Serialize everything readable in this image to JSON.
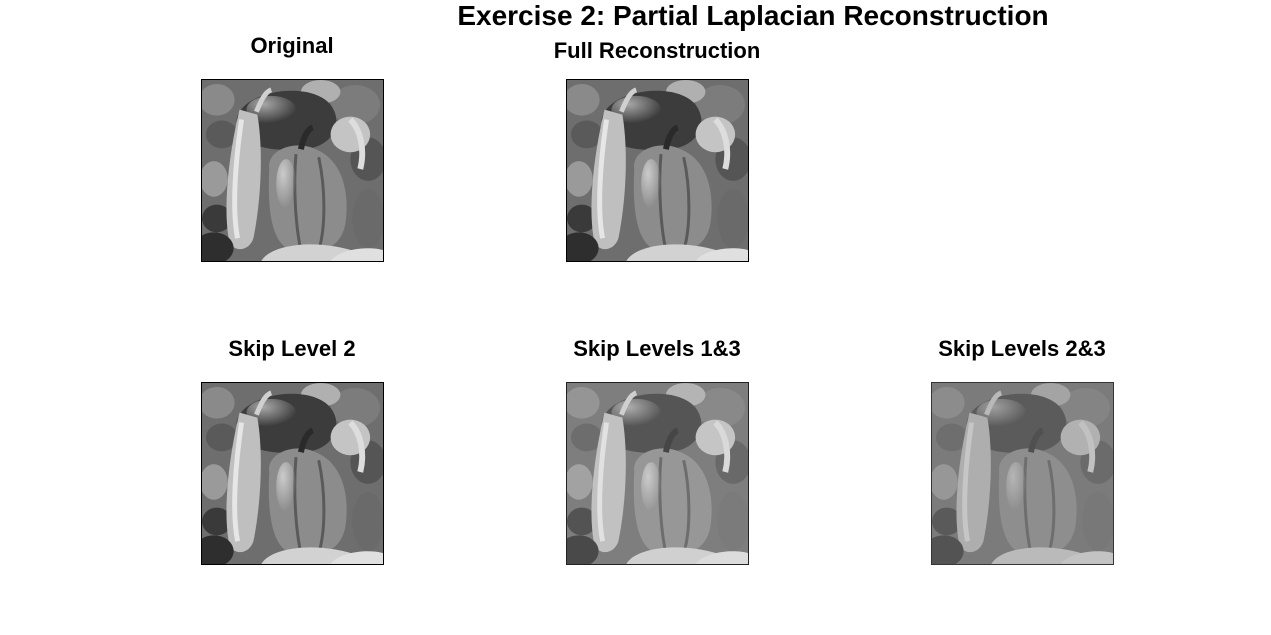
{
  "figure": {
    "title": "Exercise 2: Partial Laplacian Reconstruction",
    "panels": [
      {
        "title": "Original"
      },
      {
        "title": "Full Reconstruction"
      },
      {
        "title": "Skip Level 2"
      },
      {
        "title": "Skip Levels 1&3"
      },
      {
        "title": "Skip Levels 2&3"
      }
    ]
  }
}
